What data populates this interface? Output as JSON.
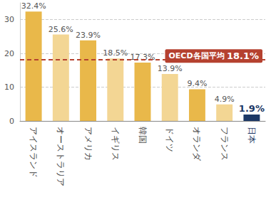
{
  "chart_data": {
    "type": "bar",
    "categories": [
      "アイスランド",
      "オーストラリア",
      "アメリカ",
      "イギリス",
      "韓国",
      "ドイツ",
      "オランダ",
      "フランス",
      "日本"
    ],
    "values": [
      32.4,
      25.6,
      23.9,
      18.5,
      17.3,
      13.9,
      9.4,
      4.9,
      1.9
    ],
    "value_labels": [
      "32.4%",
      "25.6%",
      "23.9%",
      "18.5%",
      "17.3%",
      "13.9%",
      "9.4%",
      "4.9%",
      "1.9%"
    ],
    "colors": [
      "#e9b84a",
      "#f3d694",
      "#e9b84a",
      "#f3d694",
      "#e9b84a",
      "#f3d694",
      "#e9b84a",
      "#f3d694",
      "#1c3866"
    ],
    "data_labels": true,
    "average": {
      "label": "OECD各国平均",
      "value": 18.1,
      "value_label": "18.1%",
      "color": "#b5412f"
    },
    "ylim": [
      0,
      35
    ],
    "yticks": [
      0,
      10,
      20,
      30
    ],
    "grid": true
  }
}
